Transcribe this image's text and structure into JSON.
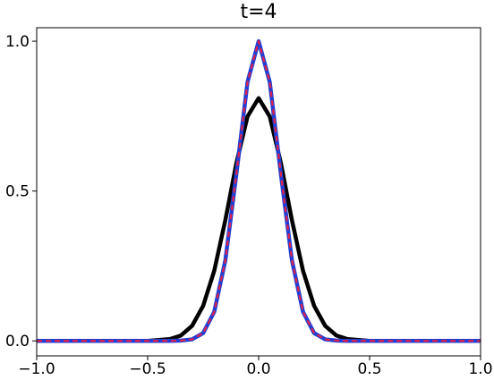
{
  "chart_data": {
    "type": "line",
    "title": "t=4",
    "x": [
      -1,
      -0.8,
      -0.6,
      -0.5,
      -0.4,
      -0.35,
      -0.3,
      -0.25,
      -0.2,
      -0.15,
      -0.1,
      -0.05,
      0,
      0.05,
      0.1,
      0.15,
      0.2,
      0.25,
      0.3,
      0.35,
      0.4,
      0.5,
      0.6,
      0.8,
      1
    ],
    "series": [
      {
        "color": "#000000",
        "linestyle": "solid",
        "values": [
          0,
          0,
          0,
          0,
          0.006,
          0.018,
          0.05,
          0.117,
          0.234,
          0.403,
          0.594,
          0.749,
          0.81,
          0.749,
          0.594,
          0.403,
          0.234,
          0.117,
          0.05,
          0.018,
          0.006,
          0,
          0,
          0,
          0
        ]
      },
      {
        "color": "#1f3fd6",
        "linestyle": "solid",
        "values": [
          0,
          0,
          0,
          0,
          0,
          0.001,
          0.005,
          0.026,
          0.097,
          0.269,
          0.558,
          0.864,
          1.0,
          0.864,
          0.558,
          0.269,
          0.097,
          0.026,
          0.005,
          0.001,
          0,
          0,
          0,
          0,
          0
        ]
      },
      {
        "color": "#e0204a",
        "linestyle": "dashed",
        "values": [
          0,
          0,
          0,
          0,
          0,
          0.001,
          0.005,
          0.026,
          0.097,
          0.269,
          0.558,
          0.864,
          1.0,
          0.864,
          0.558,
          0.269,
          0.097,
          0.026,
          0.005,
          0.001,
          0,
          0,
          0,
          0,
          0
        ]
      }
    ],
    "xlim": [
      -1,
      1
    ],
    "ylim": [
      -0.05,
      1.045
    ],
    "xticks": [
      {
        "value": -1,
        "label": "−1.0"
      },
      {
        "value": -0.5,
        "label": "−0.5"
      },
      {
        "value": 0,
        "label": "0.0"
      },
      {
        "value": 0.5,
        "label": "0.5"
      },
      {
        "value": 1,
        "label": "1.0"
      }
    ],
    "yticks": [
      {
        "value": 0,
        "label": "0.0"
      },
      {
        "value": 0.5,
        "label": "0.5"
      },
      {
        "value": 1,
        "label": "1.0"
      }
    ]
  }
}
